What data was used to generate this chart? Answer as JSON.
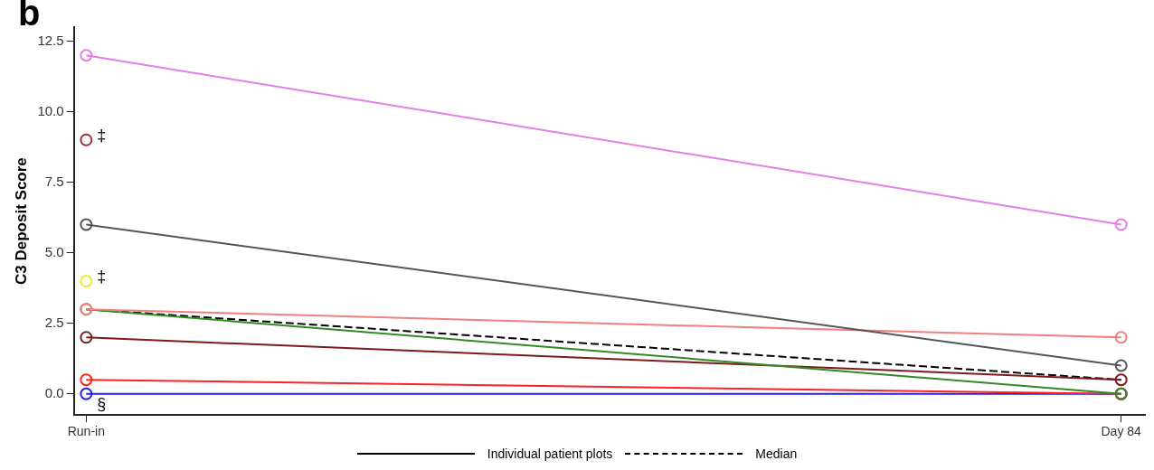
{
  "chart_data": {
    "type": "line",
    "ylabel": "C3 Deposit Score",
    "categories": [
      "Run-in",
      "Day 84"
    ],
    "ylim": [
      -0.75,
      13
    ],
    "yticks": [
      {
        "value": 0,
        "label": "0.0"
      },
      {
        "value": 2.5,
        "label": "2.5"
      },
      {
        "value": 5,
        "label": "5.0"
      },
      {
        "value": 7.5,
        "label": "7.5"
      },
      {
        "value": 10,
        "label": "10.0"
      },
      {
        "value": 12.5,
        "label": "12.5"
      }
    ],
    "grid": false,
    "legend": "bottom",
    "marker": "circle",
    "line_style": "solid",
    "series": [
      {
        "color": "#e47fe8",
        "values": [
          12,
          6
        ]
      },
      {
        "color": "#a52a2a",
        "values": [
          9,
          null
        ]
      },
      {
        "color": "#555555",
        "values": [
          6,
          1
        ]
      },
      {
        "color": "#eeee20",
        "values": [
          4,
          null
        ]
      },
      {
        "color": "#f08080",
        "values": [
          3,
          2
        ]
      },
      {
        "color": "#2e8b22",
        "values": [
          3,
          0
        ]
      },
      {
        "color": "#7a1c1c",
        "values": [
          2,
          0.5
        ]
      },
      {
        "color": "#ff2020",
        "values": [
          0.5,
          0
        ]
      },
      {
        "color": "#2020ff",
        "values": [
          0,
          0
        ]
      },
      {
        "name": "Median",
        "color": "#000000",
        "values": [
          3,
          0.5
        ],
        "line_style": "dashed",
        "marker": "none"
      }
    ],
    "annotations": [
      "b",
      {
        "text": "‡",
        "x": "Run-in",
        "y": 9
      },
      {
        "text": "‡",
        "x": "Run-in",
        "y": 4
      },
      {
        "text": "§",
        "x": "Run-in",
        "y": 0
      },
      "Individual patient plots"
    ]
  }
}
